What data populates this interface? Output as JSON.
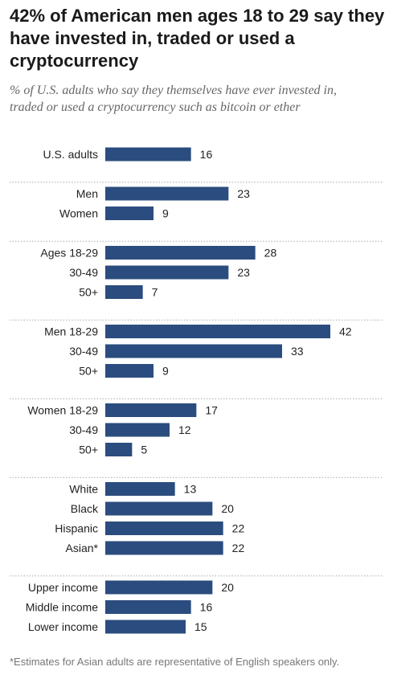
{
  "title": "42% of American men ages 18 to 29 say they have invested in, traded or used a cryptocurrency",
  "subtitle": "% of U.S. adults who say they themselves have ever invested in, traded or used a cryptocurrency such as bitcoin or ether",
  "note": "*Estimates for Asian adults are representative of English speakers only.",
  "colors": {
    "bar": "#2b4c7e",
    "divider": "#aaaaaa",
    "label": "#222222"
  },
  "chart_data": {
    "type": "bar",
    "orientation": "horizontal",
    "xlim": [
      0,
      42
    ],
    "grid": false,
    "groups": [
      {
        "items": [
          {
            "label": "U.S. adults",
            "value": 16
          }
        ]
      },
      {
        "items": [
          {
            "label": "Men",
            "value": 23
          },
          {
            "label": "Women",
            "value": 9
          }
        ]
      },
      {
        "items": [
          {
            "label": "Ages 18-29",
            "value": 28
          },
          {
            "label": "30-49",
            "value": 23
          },
          {
            "label": "50+",
            "value": 7
          }
        ]
      },
      {
        "items": [
          {
            "label": "Men 18-29",
            "value": 42
          },
          {
            "label": "30-49",
            "value": 33
          },
          {
            "label": "50+",
            "value": 9
          }
        ]
      },
      {
        "items": [
          {
            "label": "Women 18-29",
            "value": 17
          },
          {
            "label": "30-49",
            "value": 12
          },
          {
            "label": "50+",
            "value": 5
          }
        ]
      },
      {
        "items": [
          {
            "label": "White",
            "value": 13
          },
          {
            "label": "Black",
            "value": 20
          },
          {
            "label": "Hispanic",
            "value": 22
          },
          {
            "label": "Asian*",
            "value": 22
          }
        ]
      },
      {
        "items": [
          {
            "label": "Upper income",
            "value": 20
          },
          {
            "label": "Middle income",
            "value": 16
          },
          {
            "label": "Lower income",
            "value": 15
          }
        ]
      }
    ]
  }
}
